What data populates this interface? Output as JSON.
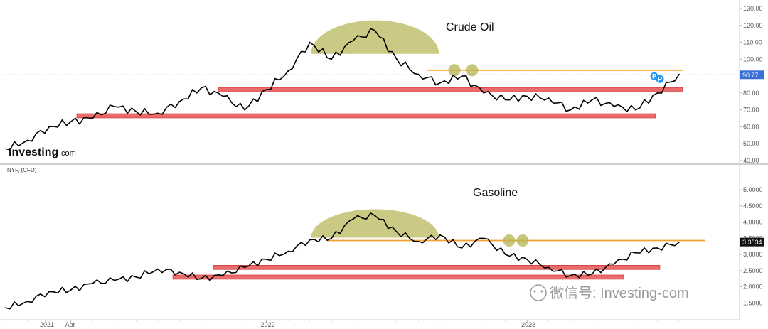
{
  "chart_data": [
    {
      "type": "line",
      "title": "Crude Oil",
      "ylim": [
        40,
        130
      ],
      "yticks": [
        "130.00",
        "120.00",
        "110.00",
        "100.00",
        "90.00",
        "80.00",
        "70.00",
        "60.00",
        "50.00",
        "40.00"
      ],
      "last_value": "90.77",
      "markers": [
        "P",
        "P"
      ],
      "grid": false,
      "x": [
        "2021-01",
        "2021-02",
        "2021-03",
        "2021-04",
        "2021-05",
        "2021-06",
        "2021-07",
        "2021-08",
        "2021-09",
        "2021-10",
        "2021-11",
        "2021-12",
        "2022-01",
        "2022-02",
        "2022-03",
        "2022-04",
        "2022-05",
        "2022-06",
        "2022-07",
        "2022-08",
        "2022-09",
        "2022-10",
        "2022-11",
        "2022-12",
        "2023-01",
        "2023-02",
        "2023-03",
        "2023-04",
        "2023-05",
        "2023-06",
        "2023-07",
        "2023-08"
      ],
      "series": [
        {
          "values": [
            47,
            52,
            60,
            63,
            65,
            72,
            69,
            68,
            75,
            83,
            78,
            70,
            82,
            93,
            110,
            100,
            111,
            117,
            100,
            91,
            86,
            90,
            80,
            76,
            78,
            77,
            70,
            76,
            72,
            70,
            80,
            91
          ]
        }
      ],
      "annotations": {
        "colors": {
          "support": "#e85050",
          "resistance": "#f5a030",
          "dome": "#b4b450",
          "price_line": "#3a6fd8",
          "marker": "#2196f3"
        },
        "support_levels": [
          66.5,
          82.0
        ],
        "resistance_level": 93.5,
        "dome_peak": 123
      }
    },
    {
      "type": "line",
      "title": "Gasoline",
      "ylim": [
        1.2,
        5.2
      ],
      "yticks": [
        "5.0000",
        "4.5000",
        "4.0000",
        "3.5000",
        "3.0000",
        "2.5000",
        "2.0000",
        "1.5000"
      ],
      "last_value": "3.3834",
      "grid": false,
      "x": [
        "2021-01",
        "2021-02",
        "2021-03",
        "2021-04",
        "2021-05",
        "2021-06",
        "2021-07",
        "2021-08",
        "2021-09",
        "2021-10",
        "2021-11",
        "2021-12",
        "2022-01",
        "2022-02",
        "2022-03",
        "2022-04",
        "2022-05",
        "2022-06",
        "2022-07",
        "2022-08",
        "2022-09",
        "2022-10",
        "2022-11",
        "2022-12",
        "2023-01",
        "2023-02",
        "2023-03",
        "2023-04",
        "2023-05",
        "2023-06",
        "2023-07",
        "2023-08"
      ],
      "series": [
        {
          "values": [
            1.35,
            1.55,
            1.85,
            1.9,
            2.1,
            2.2,
            2.3,
            2.55,
            2.45,
            2.25,
            2.35,
            2.6,
            2.85,
            3.1,
            3.45,
            3.5,
            4.1,
            4.2,
            3.7,
            3.4,
            3.6,
            3.2,
            3.5,
            3.0,
            2.85,
            2.6,
            2.35,
            2.4,
            2.7,
            3.05,
            3.2,
            3.38
          ]
        }
      ],
      "annotations": {
        "colors": {
          "support": "#e85050",
          "resistance": "#f5a030",
          "dome": "#b4b450"
        },
        "support_levels": [
          2.3,
          2.6
        ],
        "resistance_level": 3.43,
        "dome_peak": 4.4
      }
    }
  ],
  "x_axis": {
    "labels": [
      "2021",
      "Apr",
      "2022",
      "2023"
    ]
  },
  "header": {
    "symbol": "NYF, (CFD)"
  },
  "logo": {
    "text": "Investing",
    "suffix": ".com"
  },
  "watermark": {
    "text": "微信号: Investing-com"
  }
}
